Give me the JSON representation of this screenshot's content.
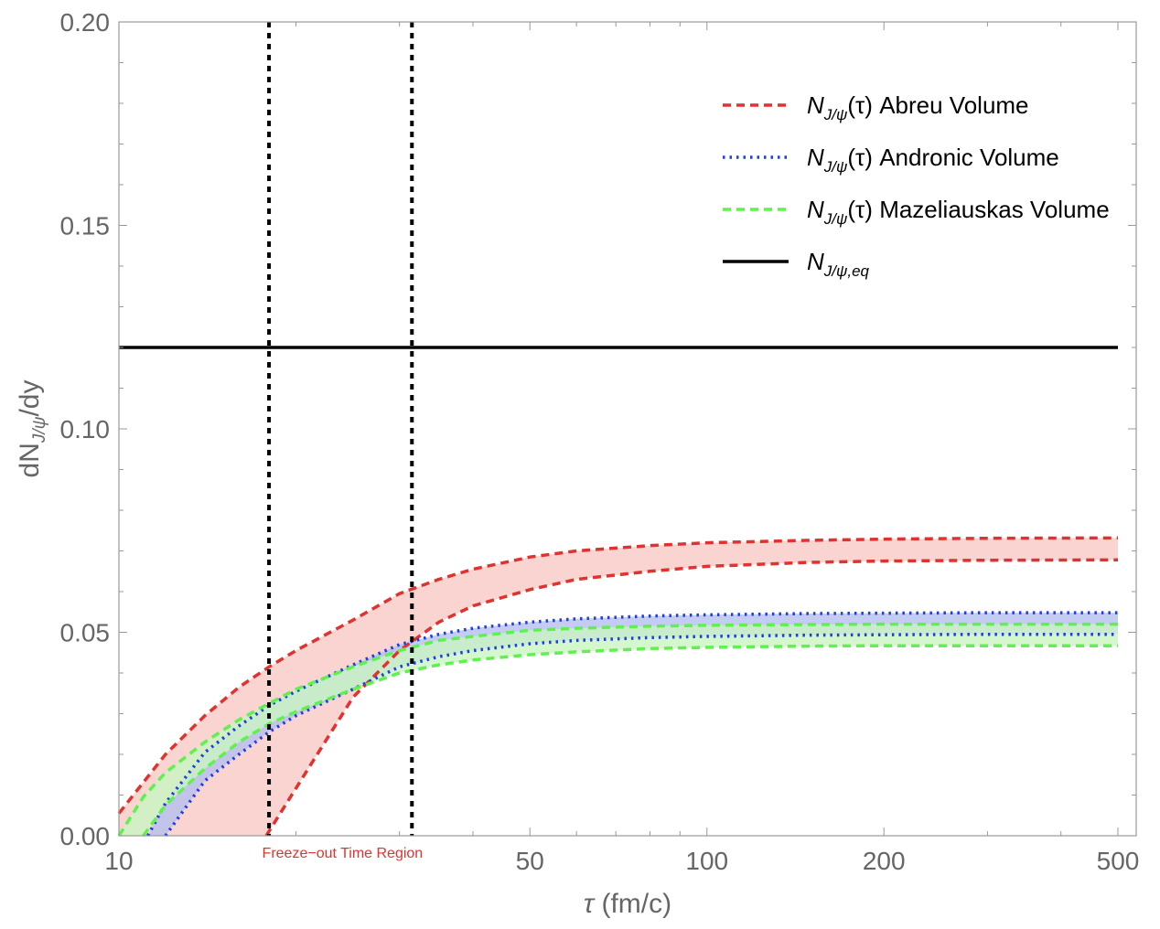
{
  "chart_data": {
    "type": "line",
    "xlabel_math": "τ",
    "xlabel_rest": " (fm/c)",
    "ylabel_main": "dN",
    "ylabel_sub": "J/ψ",
    "ylabel_rest": "/dy",
    "xscale": "log",
    "xlim": [
      10,
      500
    ],
    "ylim": [
      0,
      0.2
    ],
    "x_ticks": [
      {
        "value": 10,
        "label": "10"
      },
      {
        "value": 50,
        "label": "50"
      },
      {
        "value": 100,
        "label": "100"
      },
      {
        "value": 200,
        "label": "200"
      },
      {
        "value": 500,
        "label": "500"
      }
    ],
    "y_ticks": [
      {
        "value": 0.0,
        "label": "0.00"
      },
      {
        "value": 0.05,
        "label": "0.05"
      },
      {
        "value": 0.1,
        "label": "0.10"
      },
      {
        "value": 0.15,
        "label": "0.15"
      },
      {
        "value": 0.2,
        "label": "0.20"
      }
    ],
    "grid": false,
    "legend_position": "top-right",
    "series": [
      {
        "legend_main": "N",
        "legend_sub": "J/ψ",
        "legend_arg": "(τ)",
        "legend_rest": " Abreu Volume",
        "color": "#e0332f",
        "fill": "#f9c9c6",
        "style": "dashed",
        "x": [
          10,
          12,
          14,
          16,
          18,
          20,
          25,
          30,
          35,
          40,
          50,
          60,
          80,
          100,
          150,
          200,
          300,
          500
        ],
        "upper": [
          0.0055,
          0.02,
          0.0295,
          0.0365,
          0.0415,
          0.0455,
          0.053,
          0.0595,
          0.063,
          0.0655,
          0.0685,
          0.07,
          0.0713,
          0.072,
          0.0726,
          0.0729,
          0.0731,
          0.0732
        ],
        "lower": [
          null,
          null,
          null,
          null,
          null,
          null,
          0.034,
          0.0455,
          0.0525,
          0.0565,
          0.0605,
          0.063,
          0.065,
          0.0662,
          0.0672,
          0.0675,
          0.0677,
          0.0678
        ],
        "lower_start": {
          "x": 17.8,
          "y": 0.0
        }
      },
      {
        "legend_main": "N",
        "legend_sub": "J/ψ",
        "legend_arg": "(τ)",
        "legend_rest": " Andronic Volume",
        "color": "#1f3fe0",
        "fill": "#b6bff0",
        "style": "dotted",
        "x": [
          11.2,
          12,
          14,
          16,
          18,
          20,
          25,
          30,
          35,
          40,
          50,
          60,
          80,
          100,
          150,
          200,
          300,
          500
        ],
        "upper": [
          0.0,
          0.008,
          0.0205,
          0.027,
          0.032,
          0.0355,
          0.042,
          0.047,
          0.0495,
          0.051,
          0.0525,
          0.0533,
          0.054,
          0.0543,
          0.0546,
          0.0547,
          0.0548,
          0.0548
        ],
        "lower": [
          null,
          0.0,
          0.0135,
          0.02,
          0.0255,
          0.0295,
          0.036,
          0.0415,
          0.044,
          0.0455,
          0.0472,
          0.048,
          0.0487,
          0.049,
          0.0493,
          0.0494,
          0.0495,
          0.0495
        ],
        "lower_start": {
          "x": 12.0,
          "y": 0.0
        }
      },
      {
        "legend_main": "N",
        "legend_sub": "J/ψ",
        "legend_arg": "(τ)",
        "legend_rest": " Mazeliauskas Volume",
        "color": "#5ff24f",
        "fill": "#c9f5c2",
        "style": "dashed",
        "x": [
          10,
          11,
          12,
          14,
          16,
          18,
          20,
          25,
          30,
          35,
          40,
          50,
          60,
          80,
          100,
          150,
          200,
          300,
          500
        ],
        "upper": [
          0.0,
          0.0095,
          0.0155,
          0.023,
          0.0285,
          0.0325,
          0.036,
          0.0415,
          0.0455,
          0.048,
          0.049,
          0.0505,
          0.051,
          0.0515,
          0.0517,
          0.0519,
          0.052,
          0.052,
          0.052
        ],
        "lower": [
          null,
          0.0,
          0.0075,
          0.0165,
          0.023,
          0.0275,
          0.0305,
          0.036,
          0.04,
          0.042,
          0.0432,
          0.0445,
          0.0452,
          0.046,
          0.0463,
          0.0466,
          0.0467,
          0.0467,
          0.0467
        ],
        "lower_start": {
          "x": 11.0,
          "y": 0.0
        }
      },
      {
        "legend_main": "N",
        "legend_sub": "J/ψ,eq",
        "legend_arg": "",
        "legend_rest": "",
        "color": "#000000",
        "style": "solid",
        "x": [
          10,
          500
        ],
        "values": [
          0.12,
          0.12
        ]
      }
    ],
    "vertical_lines": [
      {
        "x": 18.0,
        "color": "#000000",
        "style": "dotted"
      },
      {
        "x": 31.5,
        "color": "#000000",
        "style": "dotted"
      }
    ],
    "annotations": [
      {
        "text": "Freeze−out Time Region",
        "x": 24.0,
        "y": 0.0
      }
    ]
  }
}
